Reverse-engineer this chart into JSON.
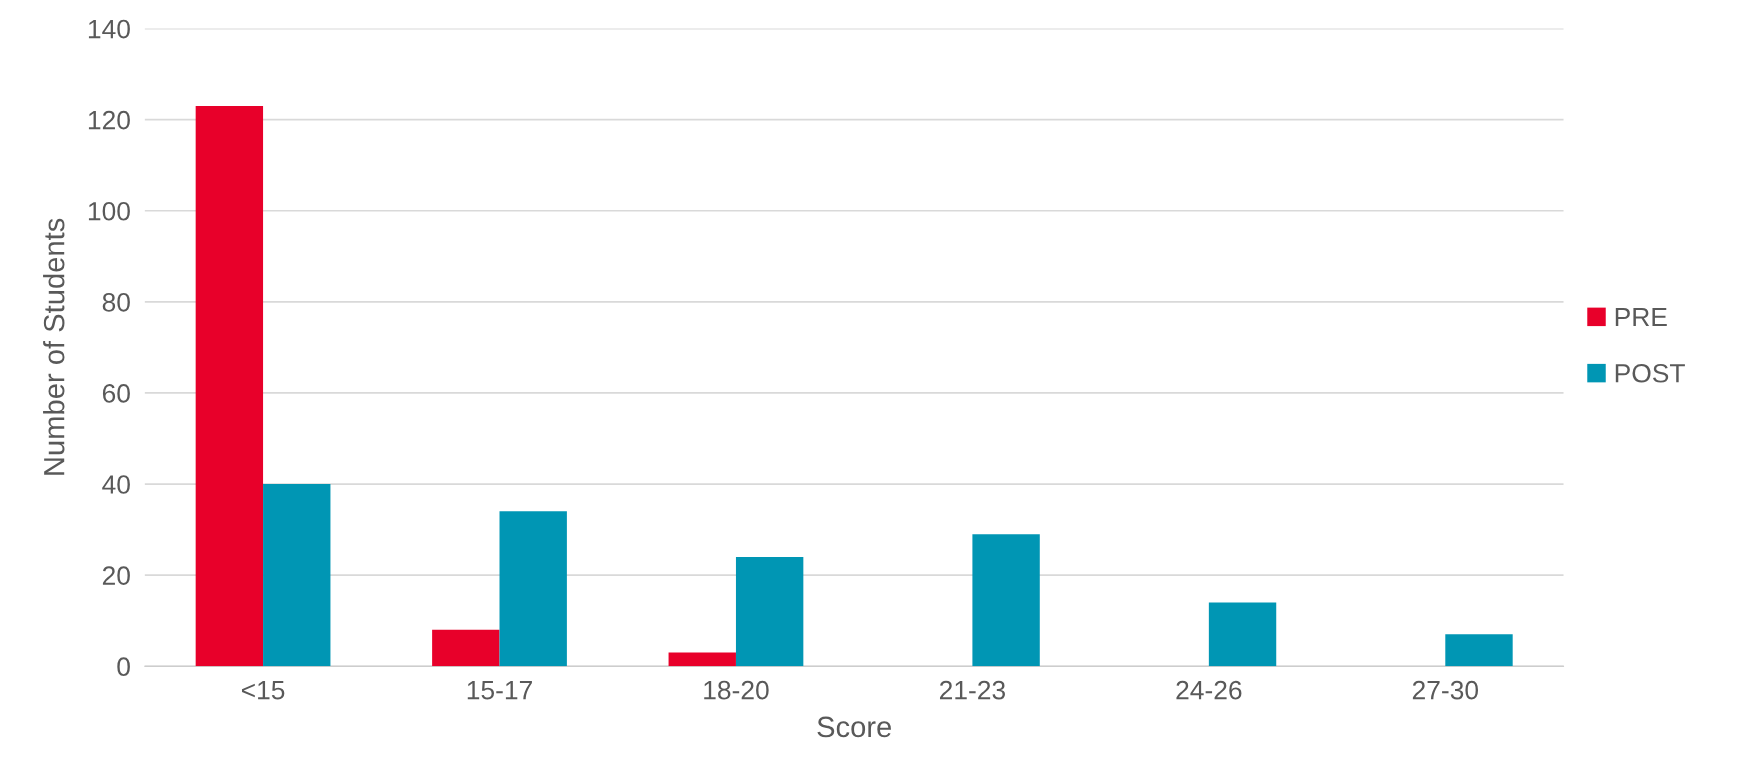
{
  "chart_data": {
    "type": "bar",
    "xlabel": "Score",
    "ylabel": "Number of Students",
    "categories": [
      "<15",
      "15-17",
      "18-20",
      "21-23",
      "24-26",
      "27-30"
    ],
    "series": [
      {
        "name": "PRE",
        "color": "#e8002a",
        "values": [
          123,
          8,
          3,
          0,
          0,
          0
        ]
      },
      {
        "name": "POST",
        "color": "#0096b4",
        "values": [
          40,
          34,
          24,
          29,
          14,
          7
        ]
      }
    ],
    "ylim": [
      0,
      140
    ],
    "yticks": [
      0,
      20,
      40,
      60,
      80,
      100,
      120,
      140
    ],
    "grid": "y",
    "legend": "right"
  }
}
